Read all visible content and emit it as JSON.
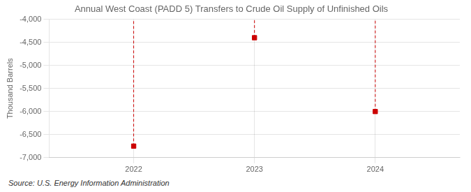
{
  "chart_data": {
    "type": "scatter",
    "title": "Annual West Coast (PADD 5) Transfers to Crude Oil Supply of Unfinished Oils",
    "ylabel": "Thousand Barrels",
    "source": "Source: U.S. Energy Information Administration",
    "x": [
      2022,
      2023,
      2024
    ],
    "values": [
      -6750,
      -4400,
      -6000
    ],
    "color": "#cc0000",
    "marker": "square",
    "line_style": "dashed",
    "xlim": [
      2021.3,
      2024.7
    ],
    "xticks": [
      2022,
      2023,
      2024
    ],
    "ylim": [
      -7000,
      -4000
    ],
    "yticks": [
      {
        "value": -4000,
        "label": "-4,000"
      },
      {
        "value": -4500,
        "label": "-4,500"
      },
      {
        "value": -5000,
        "label": "-5,000"
      },
      {
        "value": -5500,
        "label": "-5,500"
      },
      {
        "value": -6000,
        "label": "-6,000"
      },
      {
        "value": -6500,
        "label": "-6,500"
      },
      {
        "value": -7000,
        "label": "-7,000"
      }
    ],
    "grid": true
  }
}
